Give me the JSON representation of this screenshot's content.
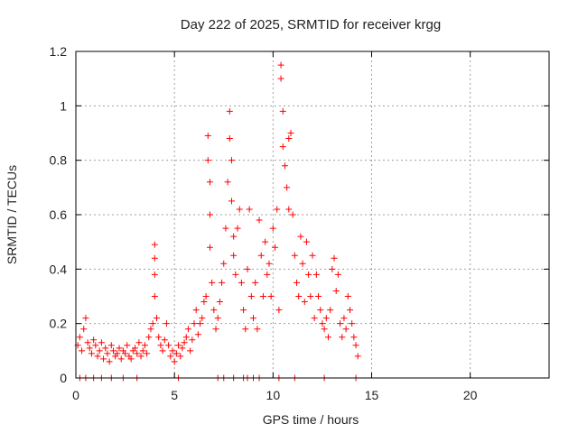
{
  "chart_data": {
    "type": "scatter",
    "title": "Day 222 of 2025, SRMTID for receiver krgg",
    "xlabel": "GPS time / hours",
    "ylabel": "SRMTID / TECUs",
    "xlim": [
      0,
      24
    ],
    "ylim": [
      0,
      1.2
    ],
    "x_ticks": [
      0,
      5,
      10,
      15,
      20
    ],
    "x_tick_labels": [
      "0",
      "5",
      "10",
      "15",
      "20"
    ],
    "y_ticks": [
      0,
      0.2,
      0.4,
      0.6,
      0.8,
      1.0,
      1.2
    ],
    "y_tick_labels": [
      "0",
      "0.2",
      "0.4",
      "0.6",
      "0.8",
      "1",
      "1.2"
    ],
    "grid": true,
    "marker": "+",
    "colors": {
      "points": "#ff0000",
      "grid": "#a0a0a0",
      "axes": "#000000"
    },
    "series": [
      {
        "name": "SRMTID",
        "x": [
          0.1,
          0.2,
          0.3,
          0.4,
          0.5,
          0.6,
          0.7,
          0.8,
          0.9,
          1.0,
          1.1,
          1.2,
          1.3,
          1.4,
          1.5,
          1.6,
          1.7,
          1.8,
          1.9,
          2.0,
          2.1,
          2.2,
          2.3,
          2.4,
          2.5,
          2.6,
          2.7,
          2.8,
          2.9,
          3.0,
          3.1,
          3.2,
          3.3,
          3.4,
          3.5,
          3.6,
          3.7,
          3.8,
          3.9,
          4.0,
          4.0,
          4.0,
          4.0,
          4.1,
          4.2,
          4.3,
          4.4,
          4.5,
          4.6,
          4.7,
          4.8,
          4.9,
          5.0,
          5.1,
          5.2,
          5.3,
          5.4,
          5.5,
          5.6,
          5.7,
          5.8,
          5.9,
          6.0,
          6.1,
          6.2,
          6.3,
          6.4,
          6.5,
          6.6,
          6.7,
          6.7,
          6.8,
          6.8,
          6.8,
          6.9,
          7.0,
          7.1,
          7.2,
          7.3,
          7.4,
          7.5,
          7.6,
          7.7,
          7.8,
          7.8,
          7.9,
          7.9,
          8.0,
          8.0,
          8.1,
          8.2,
          8.3,
          8.4,
          8.5,
          8.6,
          8.7,
          8.8,
          8.9,
          9.0,
          9.1,
          9.2,
          9.3,
          9.4,
          9.5,
          9.6,
          9.7,
          9.8,
          9.9,
          10.0,
          10.1,
          10.2,
          10.3,
          10.4,
          10.4,
          10.5,
          10.5,
          10.6,
          10.7,
          10.8,
          10.8,
          10.9,
          11.0,
          11.1,
          11.2,
          11.3,
          11.4,
          11.5,
          11.6,
          11.7,
          11.8,
          11.9,
          12.0,
          12.1,
          12.2,
          12.3,
          12.4,
          12.5,
          12.6,
          12.7,
          12.8,
          12.9,
          13.0,
          13.1,
          13.2,
          13.3,
          13.4,
          13.5,
          13.6,
          13.7,
          13.8,
          13.9,
          14.0,
          14.1,
          14.2,
          14.3,
          0.2,
          0.5,
          0.9,
          1.3,
          1.8,
          2.4,
          3.1,
          5.2,
          7.2,
          7.5,
          8.0,
          8.5,
          8.7,
          9.0,
          9.3,
          10.3,
          11.1,
          12.6,
          14.2
        ],
        "y": [
          0.12,
          0.15,
          0.1,
          0.18,
          0.22,
          0.13,
          0.11,
          0.09,
          0.14,
          0.12,
          0.08,
          0.1,
          0.13,
          0.07,
          0.11,
          0.09,
          0.06,
          0.12,
          0.1,
          0.08,
          0.09,
          0.11,
          0.07,
          0.1,
          0.09,
          0.12,
          0.08,
          0.07,
          0.1,
          0.11,
          0.09,
          0.13,
          0.08,
          0.1,
          0.12,
          0.09,
          0.15,
          0.18,
          0.2,
          0.49,
          0.44,
          0.38,
          0.3,
          0.22,
          0.15,
          0.12,
          0.1,
          0.14,
          0.2,
          0.12,
          0.08,
          0.1,
          0.06,
          0.09,
          0.12,
          0.08,
          0.11,
          0.13,
          0.15,
          0.18,
          0.1,
          0.14,
          0.2,
          0.25,
          0.16,
          0.2,
          0.22,
          0.28,
          0.3,
          0.89,
          0.8,
          0.72,
          0.6,
          0.48,
          0.35,
          0.25,
          0.18,
          0.22,
          0.28,
          0.35,
          0.42,
          0.55,
          0.72,
          0.88,
          0.98,
          0.8,
          0.65,
          0.52,
          0.45,
          0.38,
          0.55,
          0.62,
          0.35,
          0.25,
          0.18,
          0.4,
          0.62,
          0.3,
          0.22,
          0.35,
          0.18,
          0.58,
          0.45,
          0.3,
          0.5,
          0.38,
          0.42,
          0.3,
          0.55,
          0.48,
          0.62,
          0.25,
          1.15,
          1.1,
          0.98,
          0.85,
          0.78,
          0.7,
          0.62,
          0.88,
          0.9,
          0.6,
          0.45,
          0.35,
          0.3,
          0.52,
          0.42,
          0.28,
          0.5,
          0.38,
          0.3,
          0.45,
          0.22,
          0.38,
          0.3,
          0.25,
          0.2,
          0.18,
          0.22,
          0.15,
          0.25,
          0.4,
          0.44,
          0.32,
          0.38,
          0.2,
          0.15,
          0.22,
          0.18,
          0.3,
          0.25,
          0.2,
          0.15,
          0.12,
          0.08,
          0,
          0,
          0,
          0,
          0,
          0,
          0,
          0,
          0,
          0,
          0,
          0,
          0,
          0,
          0,
          0,
          0,
          0,
          0
        ]
      }
    ]
  }
}
